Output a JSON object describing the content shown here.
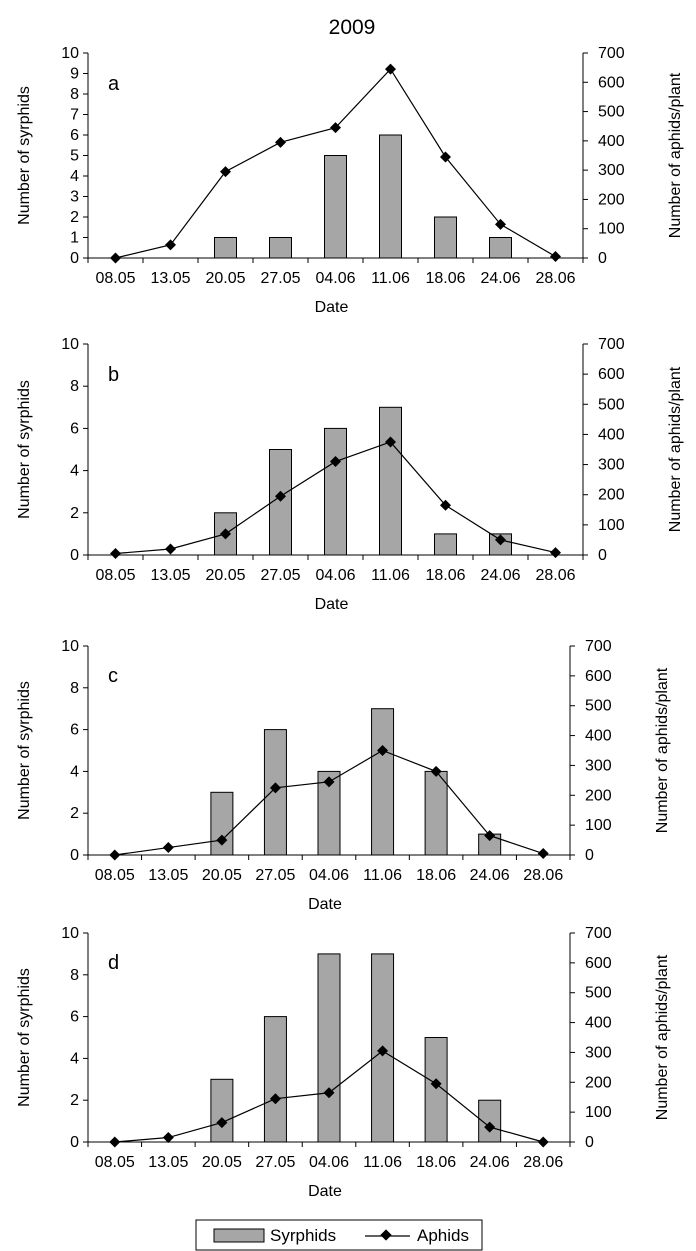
{
  "figure_title": "2009",
  "legend": {
    "bars": "Syrphids",
    "line": "Aphids"
  },
  "chart_data": [
    {
      "type": "bar+line",
      "panel": "a",
      "title": "",
      "xlabel": "Date",
      "ylabel": "Number of syrphids",
      "y2label": "Number of aphids/plant",
      "categories": [
        "08.05",
        "13.05",
        "20.05",
        "27.05",
        "04.06",
        "11.06",
        "18.06",
        "24.06",
        "28.06"
      ],
      "ylim": [
        0,
        10
      ],
      "yticks": [
        0,
        1,
        2,
        3,
        4,
        5,
        6,
        7,
        8,
        9,
        10
      ],
      "y2lim": [
        0,
        700
      ],
      "y2ticks": [
        0,
        100,
        200,
        300,
        400,
        500,
        600,
        700
      ],
      "series": [
        {
          "name": "Syrphids",
          "kind": "bar",
          "axis": "left",
          "values": [
            0,
            0,
            1,
            1,
            5,
            6,
            2,
            1,
            0
          ]
        },
        {
          "name": "Aphids",
          "kind": "line",
          "axis": "right",
          "values": [
            0,
            45,
            295,
            395,
            445,
            645,
            345,
            115,
            5
          ]
        }
      ]
    },
    {
      "type": "bar+line",
      "panel": "b",
      "title": "",
      "xlabel": "Date",
      "ylabel": "Number of syrphids",
      "y2label": "Number of aphids/plant",
      "categories": [
        "08.05",
        "13.05",
        "20.05",
        "27.05",
        "04.06",
        "11.06",
        "18.06",
        "24.06",
        "28.06"
      ],
      "ylim": [
        0,
        10
      ],
      "yticks": [
        0,
        2,
        4,
        6,
        8,
        10
      ],
      "y2lim": [
        0,
        700
      ],
      "y2ticks": [
        0,
        100,
        200,
        300,
        400,
        500,
        600,
        700
      ],
      "series": [
        {
          "name": "Syrphids",
          "kind": "bar",
          "axis": "left",
          "values": [
            0,
            0,
            2,
            5,
            6,
            7,
            1,
            1,
            0
          ]
        },
        {
          "name": "Aphids",
          "kind": "line",
          "axis": "right",
          "values": [
            5,
            20,
            70,
            195,
            310,
            375,
            165,
            50,
            8
          ]
        }
      ]
    },
    {
      "type": "bar+line",
      "panel": "c",
      "title": "",
      "xlabel": "Date",
      "ylabel": "Number of syrphids",
      "y2label": "Number of aphids/plant",
      "categories": [
        "08.05",
        "13.05",
        "20.05",
        "27.05",
        "04.06",
        "11.06",
        "18.06",
        "24.06",
        "28.06"
      ],
      "ylim": [
        0,
        10
      ],
      "yticks": [
        0,
        2,
        4,
        6,
        8,
        10
      ],
      "y2lim": [
        0,
        700
      ],
      "y2ticks": [
        0,
        100,
        200,
        300,
        400,
        500,
        600,
        700
      ],
      "series": [
        {
          "name": "Syrphids",
          "kind": "bar",
          "axis": "left",
          "values": [
            0,
            0,
            3,
            6,
            4,
            7,
            4,
            1,
            0
          ]
        },
        {
          "name": "Aphids",
          "kind": "line",
          "axis": "right",
          "values": [
            0,
            25,
            50,
            225,
            245,
            350,
            280,
            65,
            5
          ]
        }
      ]
    },
    {
      "type": "bar+line",
      "panel": "d",
      "title": "",
      "xlabel": "Date",
      "ylabel": "Number of syrphids",
      "y2label": "Number of aphids/plant",
      "categories": [
        "08.05",
        "13.05",
        "20.05",
        "27.05",
        "04.06",
        "11.06",
        "18.06",
        "24.06",
        "28.06"
      ],
      "ylim": [
        0,
        10
      ],
      "yticks": [
        0,
        2,
        4,
        6,
        8,
        10
      ],
      "y2lim": [
        0,
        700
      ],
      "y2ticks": [
        0,
        100,
        200,
        300,
        400,
        500,
        600,
        700
      ],
      "series": [
        {
          "name": "Syrphids",
          "kind": "bar",
          "axis": "left",
          "values": [
            0,
            0,
            3,
            6,
            9,
            9,
            5,
            2,
            0
          ]
        },
        {
          "name": "Aphids",
          "kind": "line",
          "axis": "right",
          "values": [
            0,
            15,
            65,
            145,
            165,
            305,
            195,
            50,
            0
          ]
        }
      ]
    }
  ],
  "colors": {
    "bar_fill": "#a6a6a6",
    "bar_stroke": "#000000",
    "line": "#000000",
    "marker": "#000000"
  }
}
